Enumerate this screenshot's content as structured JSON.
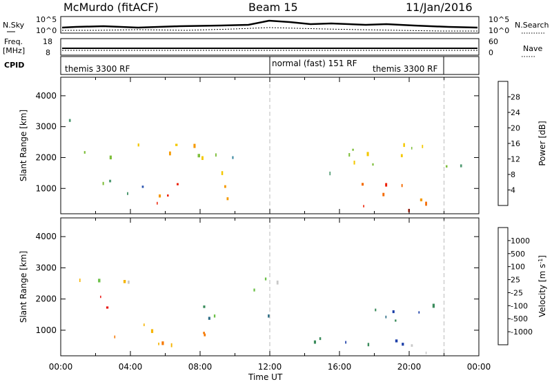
{
  "header": {
    "station": "McMurdo (fitACF)",
    "beam": "Beam 15",
    "date": "11/Jan/2016"
  },
  "top_panels": {
    "nsky_label": "N.Sky",
    "nsky_ticks": [
      "10^5",
      "10^0"
    ],
    "nsearch_label": "N.Search",
    "nsearch_ticks": [
      "10^5",
      "10^0"
    ],
    "freq_label": "Freq.",
    "freq_unit": "[MHz]",
    "freq_ticks": [
      "18",
      "8"
    ],
    "nave_label": "Nave",
    "nave_ticks": [
      "60",
      "0"
    ],
    "cpid_label": "CPID",
    "cpid_segments": [
      {
        "label": "themis 3300 RF",
        "start_hour": 0
      },
      {
        "label": "normal (fast) 151 RF",
        "start_hour": 12
      },
      {
        "label": "themis 3300 RF",
        "start_hour": 22
      }
    ]
  },
  "time_axis": {
    "label": "Time UT",
    "ticks": [
      "00:00",
      "04:00",
      "08:00",
      "12:00",
      "16:00",
      "20:00",
      "00:00"
    ]
  },
  "chart_data": [
    {
      "type": "heatmap",
      "title": "Power",
      "ylabel": "Slant Range [km]",
      "xlabel": "",
      "xlim_hours": [
        0,
        24
      ],
      "ylim": [
        180,
        4600
      ],
      "yticks": [
        1000,
        2000,
        3000,
        4000
      ],
      "dashed_marker_hours": [
        12,
        22
      ],
      "colorbar": {
        "label": "Power [dB]",
        "ticks": [
          "4",
          "8",
          "12",
          "16",
          "20",
          "24",
          "28"
        ],
        "min": 0,
        "max": 32,
        "colors": [
          "#0000ee",
          "#2c56b0",
          "#3b88a0",
          "#4f9a72",
          "#7fbf3c",
          "#f4c800",
          "#f59a00",
          "#f46a00",
          "#ec1c00"
        ]
      },
      "scatter_regions": [
        {
          "t0": 0.0,
          "t1": 12.0,
          "r0": 1950,
          "r1": 2500,
          "level": 0.45
        },
        {
          "t0": 0.0,
          "t1": 5.5,
          "r0": 600,
          "r1": 1300,
          "level": 0.35
        },
        {
          "t0": 4.5,
          "t1": 8.5,
          "r0": 450,
          "r1": 1300,
          "level": 0.85
        },
        {
          "t0": 8.0,
          "t1": 10.5,
          "r0": 700,
          "r1": 1600,
          "level": 0.7
        },
        {
          "t0": 4.0,
          "t1": 8.5,
          "r0": 2100,
          "r1": 2600,
          "level": 0.75
        },
        {
          "t0": 14.5,
          "t1": 24.0,
          "r0": 1400,
          "r1": 2500,
          "level": 0.55
        },
        {
          "t0": 16.0,
          "t1": 21.0,
          "r0": 300,
          "r1": 1500,
          "level": 0.9
        },
        {
          "t0": 18.5,
          "t1": 21.0,
          "r0": 200,
          "r1": 600,
          "level": 1.0
        },
        {
          "t0": 0.0,
          "t1": 1.5,
          "r0": 2500,
          "r1": 3300,
          "level": 0.25
        }
      ]
    },
    {
      "type": "heatmap",
      "title": "Velocity",
      "ylabel": "Slant Range [km]",
      "xlabel": "Time UT",
      "xlim_hours": [
        0,
        24
      ],
      "ylim": [
        180,
        4600
      ],
      "yticks": [
        1000,
        2000,
        3000,
        4000
      ],
      "dashed_marker_hours": [
        12,
        22
      ],
      "colorbar": {
        "label": "Velocity [m s^-1]",
        "ticks": [
          "1000",
          "500",
          "100",
          "25",
          "-25",
          "-100",
          "-500",
          "-1000"
        ],
        "min": -1000,
        "max": 1000,
        "colors": [
          "#1c3fa8",
          "#2e6e86",
          "#3b8c5c",
          "#6cc048",
          "#c8c8c8",
          "#f6b400",
          "#f67800",
          "#f24a00",
          "#e81410"
        ]
      },
      "scatter_regions": [
        {
          "t0": 0.0,
          "t1": 12.5,
          "r0": 2200,
          "r1": 2700,
          "level": 0.5
        },
        {
          "t0": 1.0,
          "t1": 7.0,
          "r0": 400,
          "r1": 1300,
          "level": 0.75
        },
        {
          "t0": 7.0,
          "t1": 8.5,
          "r0": 500,
          "r1": 1400,
          "level": 0.68
        },
        {
          "t0": 8.0,
          "t1": 12.0,
          "r0": 900,
          "r1": 1800,
          "level": 0.2
        },
        {
          "t0": 14.5,
          "t1": 21.5,
          "r0": 500,
          "r1": 2200,
          "level": 0.15
        },
        {
          "t0": 0.5,
          "t1": 3.0,
          "r0": 1700,
          "r1": 2300,
          "level": 0.92
        },
        {
          "t0": 19.5,
          "t1": 22.5,
          "r0": 200,
          "r1": 700,
          "level": 0.35
        }
      ]
    }
  ]
}
